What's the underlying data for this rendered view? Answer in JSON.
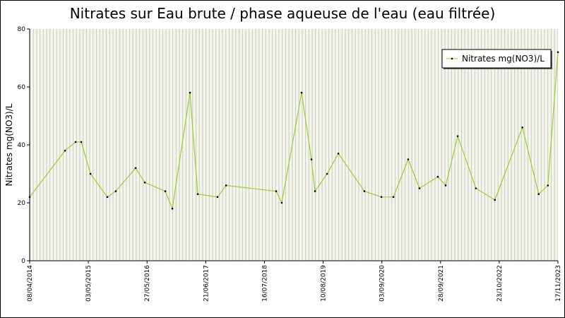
{
  "chart_data": {
    "type": "line",
    "title": "Nitrates sur Eau brute / phase aqueuse de l'eau (eau filtrée)",
    "y_label": "Nitrates mg(NO3)/L",
    "x": [
      "2014-04-08",
      "2014-11-29",
      "2015-02-07",
      "2015-03-17",
      "2015-05-17",
      "2015-09-06",
      "2015-11-01",
      "2016-03-12",
      "2016-05-12",
      "2016-09-25",
      "2016-11-11",
      "2017-03-08",
      "2017-04-29",
      "2017-09-07",
      "2017-11-03",
      "2018-10-02",
      "2018-11-08",
      "2019-03-20",
      "2019-05-24",
      "2019-06-17",
      "2019-09-05",
      "2019-11-19",
      "2020-05-10",
      "2020-08-31",
      "2020-11-19",
      "2021-02-25",
      "2021-05-11",
      "2021-09-10",
      "2021-11-01",
      "2022-01-20",
      "2022-05-21",
      "2022-09-24",
      "2023-03-26",
      "2023-07-12",
      "2023-09-11",
      "2023-11-17"
    ],
    "series": [
      {
        "name": "Nitrates mg(NO3)/L",
        "color": "#9acd32",
        "values": [
          22,
          38,
          41,
          41,
          30,
          22,
          24,
          32,
          27,
          24,
          18,
          58,
          23,
          22,
          26,
          24,
          20,
          58,
          35,
          24,
          30,
          37,
          24,
          22,
          22,
          35,
          25,
          29,
          26,
          43,
          25,
          21,
          46,
          23,
          26,
          72
        ]
      }
    ],
    "xlim": [
      "2014-04-08",
      "2023-11-17"
    ],
    "xticks": [
      {
        "value": "2014-04-08",
        "label": "08/04/2014"
      },
      {
        "value": "2015-05-03",
        "label": "03/05/2015"
      },
      {
        "value": "2016-05-27",
        "label": "27/05/2016"
      },
      {
        "value": "2017-06-21",
        "label": "21/06/2017"
      },
      {
        "value": "2018-07-16",
        "label": "16/07/2018"
      },
      {
        "value": "2019-08-10",
        "label": "10/08/2019"
      },
      {
        "value": "2020-09-03",
        "label": "03/09/2020"
      },
      {
        "value": "2021-09-28",
        "label": "28/09/2021"
      },
      {
        "value": "2022-10-23",
        "label": "23/10/2022"
      },
      {
        "value": "2023-11-17",
        "label": "17/11/2023"
      }
    ],
    "ylim": [
      0,
      80
    ],
    "yticks": [
      0,
      20,
      40,
      60,
      80
    ],
    "legend": "top-right"
  }
}
